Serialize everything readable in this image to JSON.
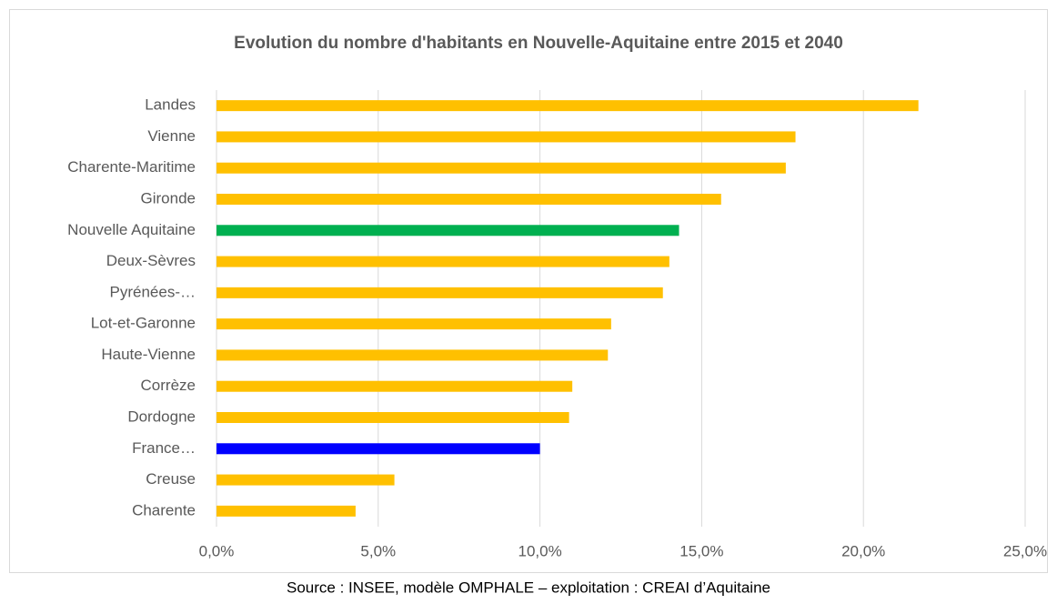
{
  "chart_data": {
    "type": "bar",
    "orientation": "horizontal",
    "title": "Evolution du nombre d'habitants en Nouvelle-Aquitaine entre 2015 et 2040",
    "categories": [
      "Landes",
      "Vienne",
      "Charente-Maritime",
      "Gironde",
      "Nouvelle Aquitaine",
      "Deux-Sèvres",
      "Pyrénées-…",
      "Lot-et-Garonne",
      "Haute-Vienne",
      "Corrèze",
      "Dordogne",
      "France…",
      "Creuse",
      "Charente"
    ],
    "values": [
      21.7,
      17.9,
      17.6,
      15.6,
      14.3,
      14.0,
      13.8,
      12.2,
      12.1,
      11.0,
      10.9,
      10.0,
      5.5,
      4.3
    ],
    "colors": [
      "#ffc000",
      "#ffc000",
      "#ffc000",
      "#ffc000",
      "#00b050",
      "#ffc000",
      "#ffc000",
      "#ffc000",
      "#ffc000",
      "#ffc000",
      "#ffc000",
      "#0000ff",
      "#ffc000",
      "#ffc000"
    ],
    "xlim": [
      0,
      25
    ],
    "xticks": [
      {
        "value": 0,
        "label": "0,0%"
      },
      {
        "value": 5,
        "label": "5,0%"
      },
      {
        "value": 10,
        "label": "10,0%"
      },
      {
        "value": 15,
        "label": "15,0%"
      },
      {
        "value": 20,
        "label": "20,0%"
      },
      {
        "value": 25,
        "label": "25,0%"
      }
    ],
    "grid": true,
    "source": "Source : INSEE, modèle OMPHALE  – exploitation : CREAI d’Aquitaine"
  }
}
